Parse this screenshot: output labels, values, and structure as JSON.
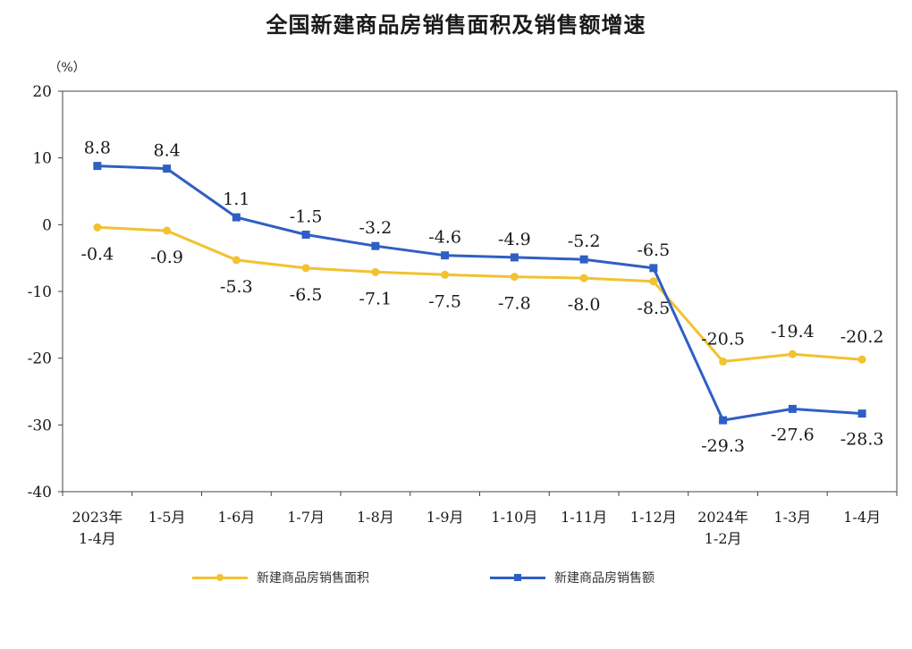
{
  "title": "全国新建商品房销售面积及销售额增速",
  "chart_data": {
    "type": "line",
    "title": "全国新建商品房销售面积及销售额增速",
    "ylabel": "（%）",
    "xlabel": "",
    "ylim": [
      -40,
      20
    ],
    "yticks": [
      20,
      10,
      0,
      -10,
      -20,
      -30,
      -40
    ],
    "grid": false,
    "legend_position": "bottom",
    "categories": [
      [
        "2023年",
        "1-4月"
      ],
      [
        "1-5月"
      ],
      [
        "1-6月"
      ],
      [
        "1-7月"
      ],
      [
        "1-8月"
      ],
      [
        "1-9月"
      ],
      [
        "1-10月"
      ],
      [
        "1-11月"
      ],
      [
        "1-12月"
      ],
      [
        "2024年",
        "1-2月"
      ],
      [
        "1-3月"
      ],
      [
        "1-4月"
      ]
    ],
    "series": [
      {
        "name": "新建商品房销售面积",
        "color": "#f2c230",
        "marker": "circle",
        "values": [
          -0.4,
          -0.9,
          -5.3,
          -6.5,
          -7.1,
          -7.5,
          -7.8,
          -8.0,
          -8.5,
          -20.5,
          -19.4,
          -20.2
        ],
        "labels": [
          "-0.4",
          "-0.9",
          "-5.3",
          "-6.5",
          "-7.1",
          "-7.5",
          "-7.8",
          "-8.0",
          "-8.5",
          "-20.5",
          "-19.4",
          "-20.2"
        ]
      },
      {
        "name": "新建商品房销售额",
        "color": "#2f5fc4",
        "marker": "square",
        "values": [
          8.8,
          8.4,
          1.1,
          -1.5,
          -3.2,
          -4.6,
          -4.9,
          -5.2,
          -6.5,
          -29.3,
          -27.6,
          -28.3
        ],
        "labels": [
          "8.8",
          "8.4",
          "1.1",
          "-1.5",
          "-3.2",
          "-4.6",
          "-4.9",
          "-5.2",
          "-6.5",
          "-29.3",
          "-27.6",
          "-28.3"
        ]
      }
    ]
  }
}
